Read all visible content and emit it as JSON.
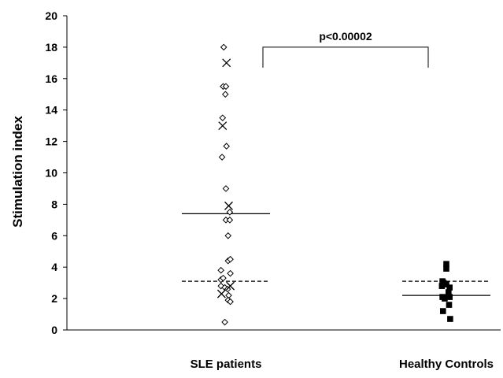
{
  "chart_data": {
    "type": "scatter",
    "ylabel": "Stimulation index",
    "ylim": [
      0,
      20
    ],
    "yticks": [
      0,
      2,
      4,
      6,
      8,
      10,
      12,
      14,
      16,
      18,
      20
    ],
    "grid": false,
    "categories": [
      "SLE patients",
      "Healthy Controls"
    ],
    "groups": [
      {
        "category": "SLE patients",
        "marker": "diamond-open",
        "points": [
          {
            "offset": -0.04,
            "y": 18.0
          },
          {
            "offset": -0.05,
            "y": 15.5
          },
          {
            "offset": 0.0,
            "y": 15.5
          },
          {
            "offset": -0.01,
            "y": 15.0
          },
          {
            "offset": -0.06,
            "y": 13.5
          },
          {
            "offset": 0.01,
            "y": 11.7
          },
          {
            "offset": -0.07,
            "y": 11.0
          },
          {
            "offset": 0.0,
            "y": 9.0
          },
          {
            "offset": 0.07,
            "y": 7.5
          },
          {
            "offset": 0.0,
            "y": 7.0
          },
          {
            "offset": 0.07,
            "y": 7.0
          },
          {
            "offset": 0.04,
            "y": 6.0
          },
          {
            "offset": 0.04,
            "y": 4.4
          },
          {
            "offset": 0.08,
            "y": 4.5
          },
          {
            "offset": -0.09,
            "y": 3.8
          },
          {
            "offset": 0.08,
            "y": 3.6
          },
          {
            "offset": -0.09,
            "y": 3.2
          },
          {
            "offset": -0.05,
            "y": 3.3
          },
          {
            "offset": -0.09,
            "y": 2.8
          },
          {
            "offset": -0.02,
            "y": 2.7
          },
          {
            "offset": 0.03,
            "y": 2.6
          },
          {
            "offset": 0.05,
            "y": 2.2
          },
          {
            "offset": 0.04,
            "y": 1.9
          },
          {
            "offset": 0.08,
            "y": 1.8
          },
          {
            "offset": -0.02,
            "y": 0.5
          }
        ]
      },
      {
        "category": "SLE patients",
        "marker": "x",
        "points": [
          {
            "offset": 0.01,
            "y": 17.0
          },
          {
            "offset": -0.06,
            "y": 13.0
          },
          {
            "offset": 0.05,
            "y": 7.9
          },
          {
            "offset": 0.08,
            "y": 2.8
          },
          {
            "offset": -0.08,
            "y": 2.3
          }
        ]
      },
      {
        "category": "Healthy Controls",
        "marker": "square-filled",
        "points": [
          {
            "offset": 0.0,
            "y": 4.2
          },
          {
            "offset": 0.0,
            "y": 3.9
          },
          {
            "offset": -0.07,
            "y": 3.1
          },
          {
            "offset": -0.05,
            "y": 3.0
          },
          {
            "offset": 0.0,
            "y": 2.9
          },
          {
            "offset": -0.08,
            "y": 2.8
          },
          {
            "offset": 0.06,
            "y": 2.7
          },
          {
            "offset": 0.04,
            "y": 2.4
          },
          {
            "offset": -0.07,
            "y": 2.1
          },
          {
            "offset": 0.06,
            "y": 2.1
          },
          {
            "offset": -0.03,
            "y": 2.0
          },
          {
            "offset": 0.05,
            "y": 1.6
          },
          {
            "offset": -0.06,
            "y": 1.2
          },
          {
            "offset": 0.07,
            "y": 0.7
          }
        ]
      }
    ],
    "reference_lines": [
      {
        "category": "SLE patients",
        "style": "solid",
        "y": 7.4,
        "half_width": 0.4
      },
      {
        "category": "SLE patients",
        "style": "dashed",
        "y": 3.1,
        "half_width": 0.4
      },
      {
        "category": "Healthy Controls",
        "style": "solid",
        "y": 2.2,
        "half_width": 0.4
      },
      {
        "category": "Healthy Controls",
        "style": "dashed",
        "y": 3.1,
        "half_width": 0.4
      }
    ],
    "annotation": {
      "text": "p<0.00002",
      "from": "SLE patients",
      "to": "Healthy Controls",
      "y": 18.0,
      "drop": 1.3
    }
  },
  "colors": {
    "axis": "#000000",
    "marker": "#000000",
    "background": "#ffffff"
  }
}
